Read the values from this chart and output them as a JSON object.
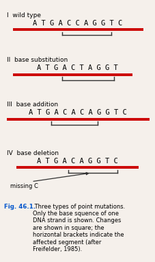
{
  "bg_color": "#f5f0eb",
  "seq_color": "#000000",
  "red_line_color": "#cc0000",
  "bracket_color": "#333333",
  "arrow_color": "#333333",
  "sections": [
    {
      "label": "I  wild type",
      "sequence": "A T G A C C A G G T C",
      "red_line_xstart": 0.08,
      "red_line_xend": 0.93,
      "bracket_xstart": 0.4,
      "bracket_xend": 0.72
    },
    {
      "label": "II  base substitution",
      "sequence": "A T G A C T A G G T",
      "red_line_xstart": 0.08,
      "red_line_xend": 0.86,
      "bracket_xstart": 0.4,
      "bracket_xend": 0.74
    },
    {
      "label": "III  base addition",
      "sequence": "A T G A C A C A G G T C",
      "red_line_xstart": 0.04,
      "red_line_xend": 0.97,
      "bracket_xstart": 0.33,
      "bracket_xend": 0.63
    },
    {
      "label": "IV  base deletion",
      "sequence": "A T G A C A G G T C",
      "red_line_xstart": 0.1,
      "red_line_xend": 0.9,
      "bracket_xstart": 0.44,
      "bracket_xend": 0.76,
      "arrow": true,
      "missing_label": "missing C"
    }
  ],
  "caption_fig": "Fig. 46.1.",
  "caption_text": " Three types of point mutations.\nOnly the base squence of one\nDNA strand is shown. Changes\nare shown in square; the\nhorizontal brackets indicate the\naffected segment (after\nFreifelder, 1985).",
  "caption_fig_color": "#0055cc",
  "caption_color": "#000000"
}
